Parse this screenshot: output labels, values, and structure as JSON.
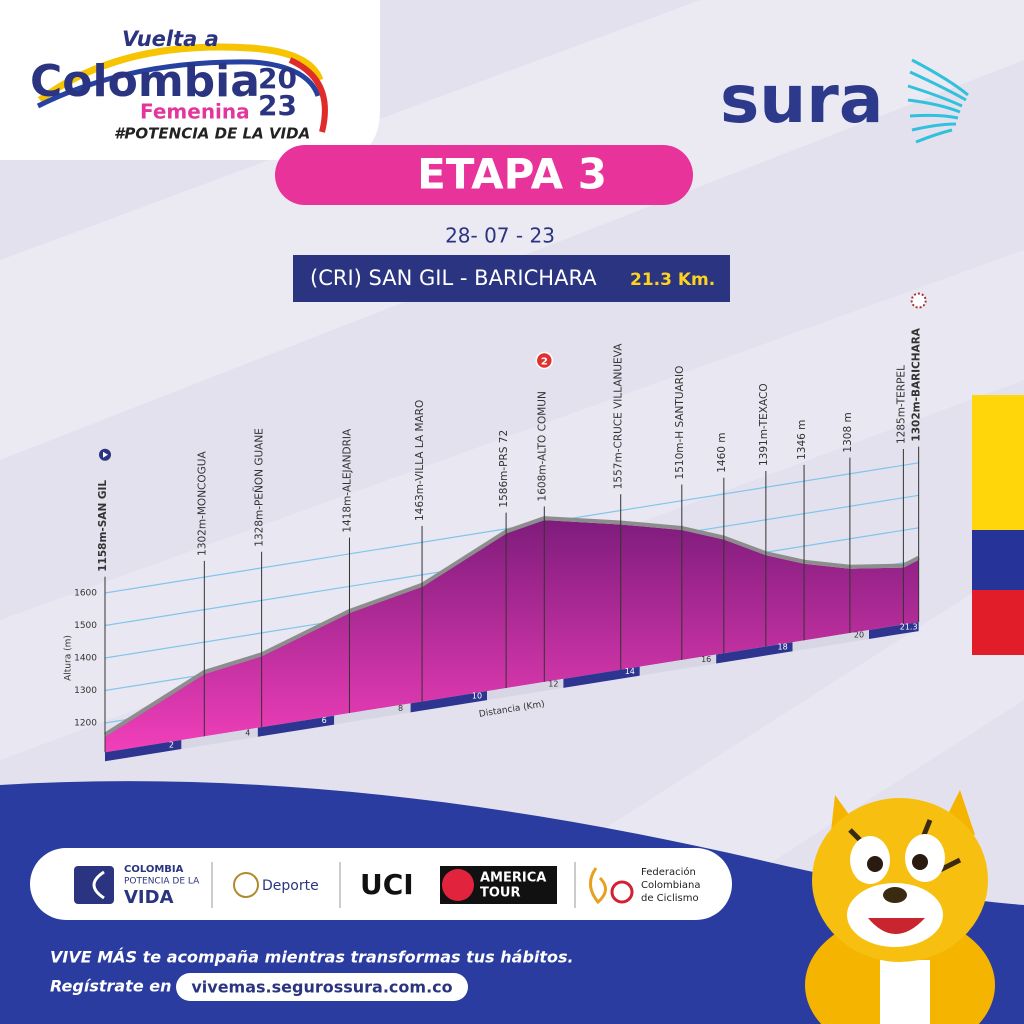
{
  "header": {
    "logo": {
      "line1": "Vuelta a",
      "line2": "Colombia",
      "year_top": "20",
      "year_bottom": "23",
      "subtitle": "Femenina",
      "tagline": "#POTENCIA DE LA VIDA"
    },
    "sponsor": "sura"
  },
  "stage": {
    "title": "ETAPA 3",
    "date": "28- 07 - 23",
    "route": "(CRI) SAN GIL - BARICHARA",
    "distance": "21.3 Km."
  },
  "chart_data": {
    "type": "area",
    "y_label": "Altura (m)",
    "x_label": "Distancia (Km)",
    "x": [
      0,
      2.6,
      4.1,
      6.4,
      8.3,
      10.5,
      11.5,
      13.5,
      15.1,
      16.2,
      17.3,
      18.3,
      19.5,
      20.9,
      21.3
    ],
    "values": [
      1158,
      1302,
      1328,
      1418,
      1463,
      1586,
      1608,
      1557,
      1510,
      1460,
      1391,
      1346,
      1308,
      1285,
      1302
    ],
    "point_labels": [
      "1158m-SAN GIL",
      "1302m-MONCOGUA",
      "1328m-PEÑON GUANE",
      "1418m-ALEJANDRIA",
      "1463m-VILLA LA MARO",
      "1586m-PRS 72",
      "1608m-ALTO COMUN",
      "1557m-CRUCE VILLANUEVA",
      "1510m-H SANTUARIO",
      "1460 m",
      "1391m-TEXACO",
      "1346 m",
      "1308 m",
      "1285m-TERPEL",
      "1302m-BARICHARA"
    ],
    "badge": "2",
    "xlim": [
      0,
      21.3
    ],
    "xticks": [
      2,
      4,
      6,
      8,
      10,
      12,
      14,
      16,
      18,
      20,
      21.3
    ],
    "ylim": [
      1110,
      1650
    ],
    "yticks": [
      1200,
      1300,
      1400,
      1500,
      1600
    ],
    "color": "#e93bb3",
    "grid": true
  },
  "partners": {
    "colombia": {
      "line1": "COLOMBIA",
      "line2": "POTENCIA DE LA",
      "line3": "VIDA"
    },
    "deporte": "Deporte",
    "uci": {
      "name": "UCI",
      "line1": "AMERICA",
      "line2": "TOUR"
    },
    "federacion": {
      "line1": "Federación",
      "line2": "Colombiana",
      "line3": "de Ciclismo"
    }
  },
  "footer": {
    "message": "VIVE MÁS te acompaña mientras transformas tus hábitos.",
    "register": "Regístrate en",
    "url": "vivemas.segurossura.com.co"
  }
}
